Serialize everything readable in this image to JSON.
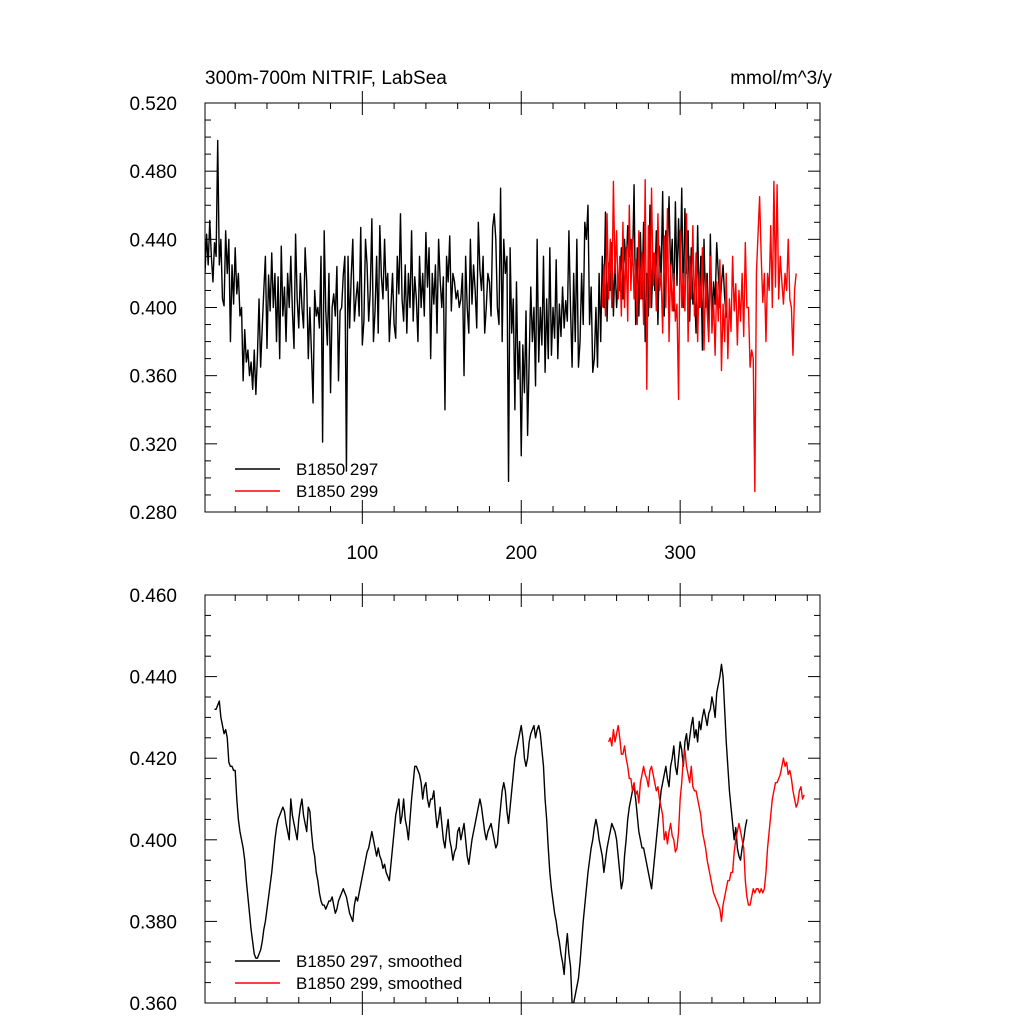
{
  "chart_data": [
    {
      "type": "line",
      "title": "300m-700m NITRIF, LabSea",
      "units": "mmol/m^3/y",
      "xlim": [
        1,
        388
      ],
      "ylim": [
        0.28,
        0.52
      ],
      "xticks": [
        100,
        200,
        300
      ],
      "xtick_labels": [
        "100",
        "200",
        "300"
      ],
      "yticks": [
        0.28,
        0.32,
        0.36,
        0.4,
        0.44,
        0.48,
        0.52
      ],
      "ytick_labels": [
        "0.280",
        "0.320",
        "0.360",
        "0.400",
        "0.440",
        "0.480",
        "0.520"
      ],
      "legend_position": "bottom-left",
      "series": [
        {
          "name": "B1850 297",
          "color": "#000000",
          "start": 1,
          "values": [
            0.42,
            0.443,
            0.425,
            0.451,
            0.43,
            0.415,
            0.438,
            0.43,
            0.498,
            0.425,
            0.44,
            0.405,
            0.401,
            0.445,
            0.42,
            0.44,
            0.38,
            0.425,
            0.402,
            0.435,
            0.408,
            0.42,
            0.395,
            0.4,
            0.357,
            0.387,
            0.368,
            0.375,
            0.36,
            0.368,
            0.352,
            0.375,
            0.349,
            0.372,
            0.405,
            0.365,
            0.388,
            0.41,
            0.43,
            0.376,
            0.419,
            0.398,
            0.432,
            0.4,
            0.42,
            0.38,
            0.418,
            0.37,
            0.436,
            0.395,
            0.412,
            0.38,
            0.42,
            0.4,
            0.43,
            0.398,
            0.376,
            0.443,
            0.405,
            0.388,
            0.42,
            0.4,
            0.388,
            0.435,
            0.415,
            0.37,
            0.4,
            0.373,
            0.344,
            0.41,
            0.395,
            0.4,
            0.388,
            0.43,
            0.321,
            0.445,
            0.398,
            0.378,
            0.42,
            0.35,
            0.4,
            0.408,
            0.395,
            0.424,
            0.357,
            0.398,
            0.4,
            0.419,
            0.43,
            0.304,
            0.43,
            0.388,
            0.418,
            0.44,
            0.392,
            0.405,
            0.415,
            0.395,
            0.447,
            0.378,
            0.392,
            0.44,
            0.425,
            0.392,
            0.41,
            0.452,
            0.38,
            0.398,
            0.43,
            0.385,
            0.448,
            0.418,
            0.405,
            0.44,
            0.41,
            0.42,
            0.38,
            0.4,
            0.42,
            0.39,
            0.382,
            0.43,
            0.408,
            0.455,
            0.405,
            0.392,
            0.425,
            0.385,
            0.42,
            0.4,
            0.445,
            0.392,
            0.418,
            0.405,
            0.38,
            0.43,
            0.4,
            0.42,
            0.395,
            0.444,
            0.412,
            0.435,
            0.37,
            0.42,
            0.402,
            0.425,
            0.385,
            0.44,
            0.416,
            0.4,
            0.418,
            0.34,
            0.43,
            0.415,
            0.442,
            0.398,
            0.42,
            0.415,
            0.405,
            0.41,
            0.4,
            0.405,
            0.42,
            0.36,
            0.43,
            0.4,
            0.385,
            0.44,
            0.402,
            0.425,
            0.41,
            0.388,
            0.45,
            0.422,
            0.41,
            0.43,
            0.385,
            0.4,
            0.42,
            0.415,
            0.395,
            0.447,
            0.455,
            0.44,
            0.4,
            0.39,
            0.47,
            0.38,
            0.44,
            0.42,
            0.43,
            0.298,
            0.435,
            0.385,
            0.405,
            0.34,
            0.415,
            0.358,
            0.38,
            0.313,
            0.378,
            0.35,
            0.398,
            0.325,
            0.37,
            0.412,
            0.38,
            0.4,
            0.354,
            0.44,
            0.368,
            0.4,
            0.378,
            0.43,
            0.362,
            0.405,
            0.37,
            0.435,
            0.372,
            0.4,
            0.382,
            0.428,
            0.37,
            0.402,
            0.383,
            0.412,
            0.388,
            0.404,
            0.392,
            0.445,
            0.4,
            0.365,
            0.42,
            0.38,
            0.44,
            0.365,
            0.38,
            0.42,
            0.39,
            0.45,
            0.44,
            0.46,
            0.39,
            0.412,
            0.362,
            0.37,
            0.4,
            0.365,
            0.42,
            0.38,
            0.43,
            0.4,
            0.456,
            0.392,
            0.426,
            0.41,
            0.438,
            0.395,
            0.428,
            0.4,
            0.416,
            0.41,
            0.435,
            0.405,
            0.44,
            0.42,
            0.448,
            0.43,
            0.44,
            0.425,
            0.472,
            0.39,
            0.435,
            0.395,
            0.444,
            0.405,
            0.45,
            0.38,
            0.42,
            0.395,
            0.46,
            0.4,
            0.432,
            0.41,
            0.445,
            0.39,
            0.436,
            0.418,
            0.468,
            0.395,
            0.445,
            0.43,
            0.465,
            0.42,
            0.44,
            0.398,
            0.462,
            0.413,
            0.452,
            0.418,
            0.47,
            0.4,
            0.458,
            0.42,
            0.445,
            0.392,
            0.435,
            0.402,
            0.41,
            0.385,
            0.448,
            0.4,
            0.43,
            0.375,
            0.44,
            0.4,
            0.42,
            0.38,
            0.443,
            0.392,
            0.415,
            0.402,
            0.438,
            0.42,
            0.4,
            0.414,
            0.425,
            0.406,
            0.394
          ]
        },
        {
          "name": "B1850 299",
          "color": "#ff0000",
          "start": 251,
          "values": [
            0.4,
            0.425,
            0.395,
            0.455,
            0.405,
            0.44,
            0.4,
            0.474,
            0.42,
            0.445,
            0.405,
            0.43,
            0.395,
            0.45,
            0.4,
            0.435,
            0.392,
            0.46,
            0.41,
            0.44,
            0.405,
            0.428,
            0.39,
            0.445,
            0.405,
            0.432,
            0.39,
            0.475,
            0.352,
            0.448,
            0.4,
            0.47,
            0.413,
            0.432,
            0.398,
            0.455,
            0.41,
            0.42,
            0.385,
            0.442,
            0.4,
            0.458,
            0.38,
            0.425,
            0.398,
            0.42,
            0.392,
            0.402,
            0.346,
            0.445,
            0.4,
            0.42,
            0.398,
            0.455,
            0.38,
            0.43,
            0.405,
            0.448,
            0.395,
            0.432,
            0.38,
            0.42,
            0.4,
            0.435,
            0.375,
            0.42,
            0.398,
            0.38,
            0.43,
            0.385,
            0.405,
            0.372,
            0.415,
            0.392,
            0.428,
            0.363,
            0.402,
            0.38,
            0.42,
            0.37,
            0.405,
            0.386,
            0.43,
            0.398,
            0.414,
            0.378,
            0.41,
            0.392,
            0.42,
            0.383,
            0.438,
            0.4,
            0.4,
            0.365,
            0.375,
            0.37,
            0.292,
            0.42,
            0.443,
            0.465,
            0.43,
            0.403,
            0.42,
            0.38,
            0.42,
            0.41,
            0.448,
            0.4,
            0.474,
            0.412,
            0.472,
            0.405,
            0.43,
            0.415,
            0.402,
            0.42,
            0.41,
            0.44,
            0.405,
            0.4,
            0.372,
            0.41,
            0.42
          ]
        }
      ]
    },
    {
      "type": "line",
      "xlim": [
        1,
        388
      ],
      "ylim": [
        0.36,
        0.46
      ],
      "xticks": [
        100,
        200,
        300
      ],
      "yticks": [
        0.36,
        0.38,
        0.4,
        0.42,
        0.44,
        0.46
      ],
      "ytick_labels": [
        "0.360",
        "0.380",
        "0.400",
        "0.420",
        "0.440",
        "0.460"
      ],
      "legend_position": "bottom-left",
      "series": [
        {
          "name": "B1850 297, smoothed",
          "color": "#000000",
          "start": 7,
          "values": [
            0.432,
            0.432,
            0.433,
            0.434,
            0.43,
            0.428,
            0.426,
            0.427,
            0.425,
            0.419,
            0.418,
            0.418,
            0.417,
            0.417,
            0.41,
            0.405,
            0.402,
            0.4,
            0.398,
            0.395,
            0.39,
            0.386,
            0.382,
            0.378,
            0.375,
            0.372,
            0.371,
            0.371,
            0.372,
            0.373,
            0.375,
            0.378,
            0.38,
            0.383,
            0.386,
            0.389,
            0.392,
            0.396,
            0.4,
            0.403,
            0.405,
            0.406,
            0.407,
            0.408,
            0.407,
            0.404,
            0.402,
            0.4,
            0.41,
            0.406,
            0.404,
            0.402,
            0.4,
            0.405,
            0.408,
            0.41,
            0.406,
            0.404,
            0.402,
            0.408,
            0.407,
            0.402,
            0.398,
            0.396,
            0.392,
            0.39,
            0.387,
            0.385,
            0.384,
            0.384,
            0.383,
            0.384,
            0.385,
            0.385,
            0.386,
            0.384,
            0.382,
            0.383,
            0.385,
            0.386,
            0.387,
            0.388,
            0.387,
            0.386,
            0.384,
            0.382,
            0.381,
            0.38,
            0.384,
            0.386,
            0.385,
            0.387,
            0.389,
            0.391,
            0.393,
            0.395,
            0.397,
            0.398,
            0.4,
            0.402,
            0.4,
            0.398,
            0.396,
            0.398,
            0.396,
            0.395,
            0.393,
            0.394,
            0.392,
            0.391,
            0.39,
            0.394,
            0.398,
            0.402,
            0.406,
            0.408,
            0.41,
            0.404,
            0.406,
            0.41,
            0.405,
            0.403,
            0.4,
            0.405,
            0.41,
            0.414,
            0.418,
            0.418,
            0.417,
            0.416,
            0.414,
            0.41,
            0.413,
            0.414,
            0.41,
            0.408,
            0.41,
            0.41,
            0.412,
            0.407,
            0.403,
            0.405,
            0.408,
            0.404,
            0.4,
            0.398,
            0.402,
            0.405,
            0.4,
            0.398,
            0.395,
            0.397,
            0.398,
            0.402,
            0.403,
            0.4,
            0.402,
            0.404,
            0.4,
            0.396,
            0.394,
            0.397,
            0.4,
            0.402,
            0.404,
            0.406,
            0.408,
            0.41,
            0.408,
            0.405,
            0.402,
            0.4,
            0.402,
            0.403,
            0.404,
            0.402,
            0.4,
            0.398,
            0.399,
            0.404,
            0.408,
            0.412,
            0.414,
            0.412,
            0.407,
            0.404,
            0.408,
            0.412,
            0.416,
            0.42,
            0.422,
            0.424,
            0.426,
            0.428,
            0.425,
            0.42,
            0.418,
            0.42,
            0.424,
            0.426,
            0.427,
            0.428,
            0.425,
            0.427,
            0.428,
            0.426,
            0.422,
            0.418,
            0.41,
            0.405,
            0.398,
            0.392,
            0.388,
            0.385,
            0.382,
            0.38,
            0.377,
            0.375,
            0.372,
            0.37,
            0.367,
            0.373,
            0.377,
            0.372,
            0.369,
            0.36,
            0.36,
            0.362,
            0.364,
            0.366,
            0.37,
            0.375,
            0.38,
            0.384,
            0.388,
            0.392,
            0.395,
            0.398,
            0.4,
            0.403,
            0.405,
            0.403,
            0.4,
            0.398,
            0.396,
            0.392,
            0.395,
            0.398,
            0.4,
            0.402,
            0.404,
            0.403,
            0.402,
            0.4,
            0.396,
            0.392,
            0.388,
            0.39,
            0.396,
            0.4,
            0.405,
            0.408,
            0.41,
            0.412,
            0.413,
            0.41,
            0.406,
            0.402,
            0.4,
            0.398,
            0.398,
            0.396,
            0.394,
            0.392,
            0.39,
            0.388,
            0.392,
            0.396,
            0.4,
            0.404,
            0.408,
            0.412,
            0.414,
            0.416,
            0.418,
            0.415,
            0.413,
            0.418,
            0.42,
            0.423,
            0.418,
            0.416,
            0.42,
            0.424,
            0.422,
            0.418,
            0.424,
            0.426,
            0.422,
            0.425,
            0.428,
            0.43,
            0.425,
            0.427,
            0.424,
            0.429,
            0.427,
            0.43,
            0.432,
            0.43,
            0.428,
            0.431,
            0.432,
            0.435,
            0.433,
            0.43,
            0.436,
            0.438,
            0.44,
            0.443,
            0.44,
            0.432,
            0.424,
            0.418,
            0.412,
            0.408,
            0.404,
            0.4,
            0.403,
            0.398,
            0.396,
            0.395,
            0.398,
            0.4,
            0.403,
            0.405
          ]
        },
        {
          "name": "B1850 299, smoothed",
          "color": "#ff0000",
          "start": 255,
          "values": [
            0.424,
            0.425,
            0.423,
            0.427,
            0.424,
            0.426,
            0.428,
            0.425,
            0.421,
            0.421,
            0.423,
            0.42,
            0.418,
            0.415,
            0.415,
            0.412,
            0.414,
            0.411,
            0.412,
            0.409,
            0.414,
            0.416,
            0.418,
            0.416,
            0.415,
            0.413,
            0.417,
            0.418,
            0.416,
            0.414,
            0.412,
            0.413,
            0.41,
            0.408,
            0.406,
            0.4,
            0.402,
            0.399,
            0.402,
            0.404,
            0.401,
            0.4,
            0.397,
            0.398,
            0.402,
            0.41,
            0.414,
            0.42,
            0.422,
            0.418,
            0.416,
            0.414,
            0.418,
            0.413,
            0.412,
            0.412,
            0.41,
            0.408,
            0.406,
            0.402,
            0.4,
            0.398,
            0.395,
            0.393,
            0.391,
            0.389,
            0.387,
            0.386,
            0.385,
            0.384,
            0.383,
            0.38,
            0.384,
            0.386,
            0.388,
            0.39,
            0.39,
            0.392,
            0.392,
            0.397,
            0.4,
            0.402,
            0.404,
            0.402,
            0.4,
            0.398,
            0.39,
            0.386,
            0.384,
            0.384,
            0.386,
            0.388,
            0.387,
            0.388,
            0.388,
            0.387,
            0.388,
            0.387,
            0.388,
            0.392,
            0.398,
            0.402,
            0.406,
            0.41,
            0.412,
            0.414,
            0.414,
            0.415,
            0.416,
            0.418,
            0.42,
            0.418,
            0.419,
            0.416,
            0.417,
            0.415,
            0.412,
            0.41,
            0.408,
            0.409,
            0.412,
            0.413,
            0.41,
            0.411
          ]
        }
      ]
    }
  ]
}
